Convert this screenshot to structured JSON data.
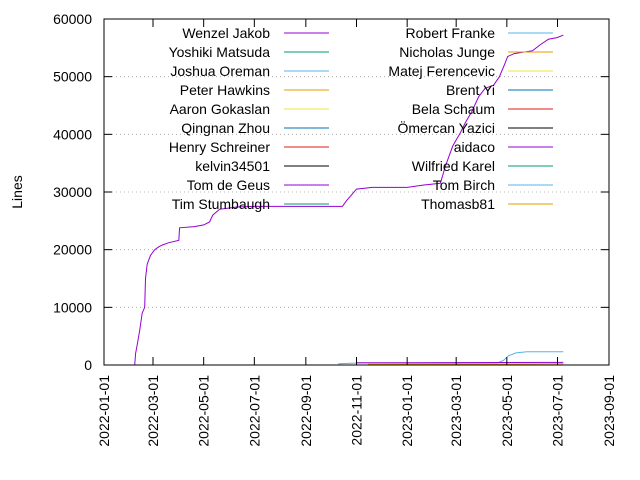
{
  "chart_data": {
    "type": "line",
    "ylabel": "Lines",
    "ylim": [
      0,
      60000
    ],
    "xlim": [
      "2022-01-01",
      "2023-09-01"
    ],
    "y_ticks": [
      0,
      10000,
      20000,
      30000,
      40000,
      50000,
      60000
    ],
    "x_ticks": [
      "2022-01-01",
      "2022-03-01",
      "2022-05-01",
      "2022-07-01",
      "2022-09-01",
      "2022-11-01",
      "2023-01-01",
      "2023-03-01",
      "2023-05-01",
      "2023-07-01",
      "2023-09-01"
    ],
    "grid": "horizontal dotted",
    "legend_placement": "top, two columns",
    "series": [
      {
        "name": "Wenzel Jakob",
        "color": "#9400d3",
        "points": [
          [
            "2022-02-07",
            0
          ],
          [
            "2022-02-08",
            2000
          ],
          [
            "2022-02-10",
            3500
          ],
          [
            "2022-02-13",
            6000
          ],
          [
            "2022-02-16",
            9000
          ],
          [
            "2022-02-19",
            10000
          ],
          [
            "2022-02-20",
            15000
          ],
          [
            "2022-02-22",
            17500
          ],
          [
            "2022-02-26",
            19000
          ],
          [
            "2022-03-03",
            20000
          ],
          [
            "2022-03-08",
            20500
          ],
          [
            "2022-03-12",
            20800
          ],
          [
            "2022-03-20",
            21200
          ],
          [
            "2022-04-01",
            21600
          ],
          [
            "2022-04-02",
            23800
          ],
          [
            "2022-04-20",
            24000
          ],
          [
            "2022-05-01",
            24300
          ],
          [
            "2022-05-08",
            24800
          ],
          [
            "2022-05-12",
            26000
          ],
          [
            "2022-05-20",
            27000
          ],
          [
            "2022-06-10",
            27400
          ],
          [
            "2022-07-01",
            27500
          ],
          [
            "2022-09-01",
            27500
          ],
          [
            "2022-10-15",
            27500
          ],
          [
            "2022-10-20",
            28500
          ],
          [
            "2022-10-26",
            29500
          ],
          [
            "2022-11-01",
            30500
          ],
          [
            "2022-11-20",
            30800
          ],
          [
            "2023-01-01",
            30800
          ],
          [
            "2023-01-20",
            31200
          ],
          [
            "2023-02-10",
            31500
          ],
          [
            "2023-02-16",
            34500
          ],
          [
            "2023-02-25",
            38000
          ],
          [
            "2023-03-05",
            40000
          ],
          [
            "2023-03-12",
            42000
          ],
          [
            "2023-03-20",
            44000
          ],
          [
            "2023-03-28",
            46500
          ],
          [
            "2023-04-05",
            48000
          ],
          [
            "2023-04-15",
            48500
          ],
          [
            "2023-04-22",
            50000
          ],
          [
            "2023-04-28",
            52000
          ],
          [
            "2023-05-02",
            53500
          ],
          [
            "2023-05-10",
            54000
          ],
          [
            "2023-06-01",
            54500
          ],
          [
            "2023-06-10",
            55500
          ],
          [
            "2023-06-20",
            56500
          ],
          [
            "2023-07-01",
            56800
          ],
          [
            "2023-07-08",
            57200
          ]
        ]
      },
      {
        "name": "Yoshiki Matsuda",
        "color": "#009e73",
        "points": [
          [
            "2022-10-10",
            0
          ],
          [
            "2023-07-08",
            0
          ]
        ]
      },
      {
        "name": "Joshua Oreman",
        "color": "#56b4e9",
        "points": [
          [
            "2022-10-10",
            200
          ],
          [
            "2022-10-25",
            300
          ],
          [
            "2022-11-05",
            350
          ],
          [
            "2023-01-01",
            350
          ],
          [
            "2023-04-20",
            400
          ],
          [
            "2023-04-27",
            800
          ],
          [
            "2023-05-03",
            1600
          ],
          [
            "2023-05-12",
            2100
          ],
          [
            "2023-05-25",
            2300
          ],
          [
            "2023-07-08",
            2300
          ]
        ]
      },
      {
        "name": "Peter Hawkins",
        "color": "#e69f00",
        "points": [
          [
            "2022-10-10",
            0
          ],
          [
            "2023-07-08",
            0
          ]
        ]
      },
      {
        "name": "Aaron Gokaslan",
        "color": "#f0e442",
        "points": [
          [
            "2022-10-10",
            0
          ],
          [
            "2023-07-08",
            0
          ]
        ]
      },
      {
        "name": "Qingnan Zhou",
        "color": "#0072b2",
        "points": [
          [
            "2022-10-10",
            0
          ],
          [
            "2023-07-08",
            0
          ]
        ]
      },
      {
        "name": "Henry Schreiner",
        "color": "#e51e10",
        "points": [
          [
            "2022-10-10",
            0
          ],
          [
            "2023-07-08",
            0
          ]
        ]
      },
      {
        "name": "kelvin34501",
        "color": "#000000",
        "points": [
          [
            "2022-10-10",
            0
          ],
          [
            "2023-07-08",
            0
          ]
        ]
      },
      {
        "name": "Tom de Geus",
        "color": "#9400d3",
        "points": [
          [
            "2022-11-01",
            400
          ],
          [
            "2023-01-01",
            400
          ],
          [
            "2023-07-08",
            450
          ]
        ]
      },
      {
        "name": "Tim Stumbaugh",
        "color": "#009e73",
        "points": [
          [
            "2022-10-10",
            0
          ],
          [
            "2023-07-08",
            0
          ]
        ]
      },
      {
        "name": "Robert Franke",
        "color": "#56b4e9",
        "points": [
          [
            "2022-10-10",
            0
          ],
          [
            "2023-07-08",
            0
          ]
        ]
      },
      {
        "name": "Nicholas Junge",
        "color": "#e69f00",
        "points": [
          [
            "2022-10-10",
            0
          ],
          [
            "2023-07-08",
            0
          ]
        ]
      },
      {
        "name": "Matej Ferencevic",
        "color": "#f0e442",
        "points": [
          [
            "2022-10-10",
            0
          ],
          [
            "2023-07-08",
            0
          ]
        ]
      },
      {
        "name": "Brent Yi",
        "color": "#0072b2",
        "points": [
          [
            "2022-10-10",
            0
          ],
          [
            "2023-07-08",
            0
          ]
        ]
      },
      {
        "name": "Bela Schaum",
        "color": "#e51e10",
        "points": [
          [
            "2022-10-10",
            0
          ],
          [
            "2023-07-08",
            0
          ]
        ]
      },
      {
        "name": "Ömercan Yazici",
        "color": "#000000",
        "points": [
          [
            "2022-10-10",
            0
          ],
          [
            "2023-07-08",
            0
          ]
        ]
      },
      {
        "name": "aidaco",
        "color": "#9400d3",
        "points": [
          [
            "2022-10-10",
            0
          ],
          [
            "2023-07-08",
            0
          ]
        ]
      },
      {
        "name": "Wilfried Karel",
        "color": "#009e73",
        "points": [
          [
            "2022-10-10",
            0
          ],
          [
            "2023-07-08",
            0
          ]
        ]
      },
      {
        "name": "Tom Birch",
        "color": "#56b4e9",
        "points": [
          [
            "2022-10-10",
            0
          ],
          [
            "2023-07-08",
            0
          ]
        ]
      },
      {
        "name": "Thomasb81",
        "color": "#e69f00",
        "points": [
          [
            "2022-11-15",
            100
          ],
          [
            "2023-03-01",
            150
          ],
          [
            "2023-07-08",
            200
          ]
        ]
      }
    ]
  }
}
